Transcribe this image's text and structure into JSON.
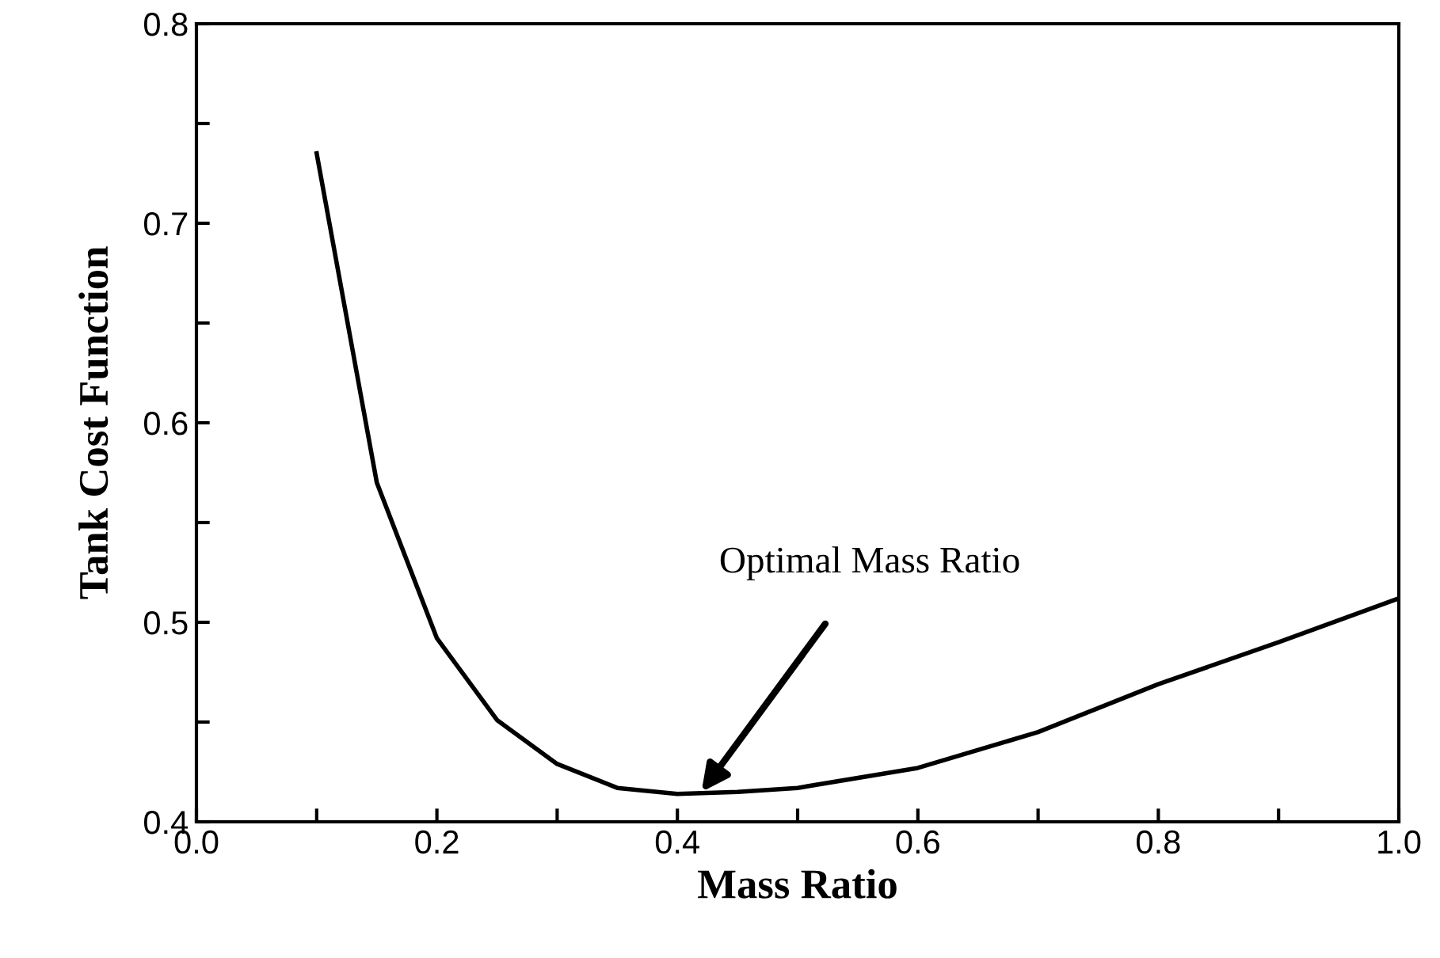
{
  "chart_data": {
    "type": "line",
    "xlabel": "Mass Ratio",
    "ylabel": "Tank Cost Function",
    "x": [
      0.1,
      0.15,
      0.2,
      0.25,
      0.3,
      0.35,
      0.4,
      0.45,
      0.5,
      0.6,
      0.7,
      0.8,
      0.9,
      1.0
    ],
    "series": [
      {
        "color": "#000000",
        "values": [
          0.735,
          0.57,
          0.492,
          0.451,
          0.429,
          0.417,
          0.414,
          0.415,
          0.417,
          0.427,
          0.445,
          0.469,
          0.49,
          0.512
        ]
      }
    ],
    "xlim": [
      0.0,
      1.0
    ],
    "ylim": [
      0.4,
      0.8
    ],
    "xticks": [
      {
        "value": 0.0,
        "label": "0.0"
      },
      {
        "value": 0.1,
        "label": null
      },
      {
        "value": 0.2,
        "label": "0.2"
      },
      {
        "value": 0.3,
        "label": null
      },
      {
        "value": 0.4,
        "label": "0.4"
      },
      {
        "value": 0.5,
        "label": null
      },
      {
        "value": 0.6,
        "label": "0.6"
      },
      {
        "value": 0.7,
        "label": null
      },
      {
        "value": 0.8,
        "label": "0.8"
      },
      {
        "value": 0.9,
        "label": null
      },
      {
        "value": 1.0,
        "label": "1.0"
      }
    ],
    "yticks": [
      {
        "value": 0.4,
        "label": "0.4"
      },
      {
        "value": 0.45,
        "label": null
      },
      {
        "value": 0.5,
        "label": "0.5"
      },
      {
        "value": 0.55,
        "label": null
      },
      {
        "value": 0.6,
        "label": "0.6"
      },
      {
        "value": 0.65,
        "label": null
      },
      {
        "value": 0.7,
        "label": "0.7"
      },
      {
        "value": 0.75,
        "label": null
      },
      {
        "value": 0.8,
        "label": "0.8"
      }
    ],
    "annotations": [
      {
        "text": "Optimal Mass Ratio",
        "x": 0.42,
        "y": 0.415
      }
    ],
    "grid": false,
    "legend": false,
    "marker": "none",
    "line_style": "solid"
  }
}
